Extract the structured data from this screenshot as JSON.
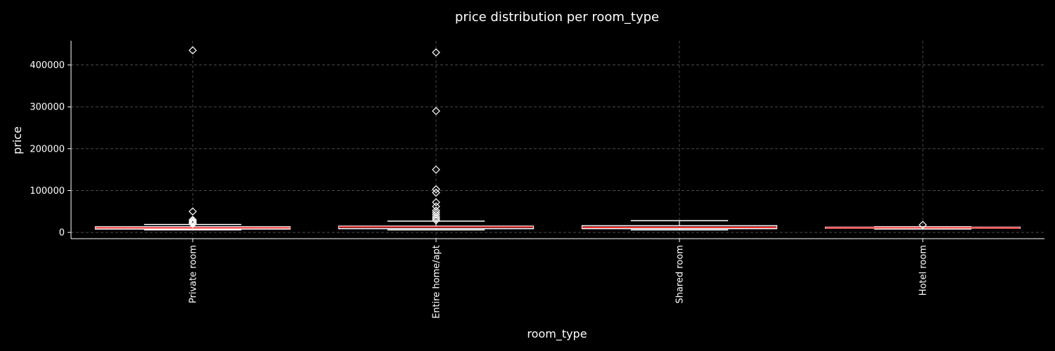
{
  "chart_data": {
    "type": "box",
    "title": "price distribution per room_type",
    "xlabel": "room_type",
    "ylabel": "price",
    "ylim": [
      -15000,
      458000
    ],
    "yticks": [
      0,
      100000,
      200000,
      300000,
      400000
    ],
    "ytick_labels": [
      "0",
      "100000",
      "200000",
      "300000",
      "400000"
    ],
    "grid": true,
    "categories": [
      "Private room",
      "Entire home/apt",
      "Shared room",
      "Hotel room"
    ],
    "boxes": [
      {
        "category": "Private room",
        "whisker_low": 6000,
        "q1": 8000,
        "median": 11000,
        "q3": 13500,
        "whisker_high": 19000,
        "outliers": [
          20000,
          22000,
          24000,
          27000,
          30000,
          50000,
          435000
        ]
      },
      {
        "category": "Entire home/apt",
        "whisker_low": 6000,
        "q1": 9000,
        "median": 13000,
        "q3": 15000,
        "whisker_high": 27000,
        "outliers": [
          29000,
          33000,
          37000,
          42000,
          47000,
          52000,
          62000,
          72000,
          95000,
          103000,
          150000,
          290000,
          430000
        ]
      },
      {
        "category": "Shared room",
        "whisker_low": 6000,
        "q1": 9000,
        "median": 12000,
        "q3": 16000,
        "whisker_high": 28000,
        "outliers": []
      },
      {
        "category": "Hotel room",
        "whisker_low": 8000,
        "q1": 10000,
        "median": 11000,
        "q3": 12500,
        "whisker_high": 13500,
        "outliers": [
          18000
        ]
      }
    ],
    "colors": {
      "background": "#000000",
      "axis": "#ffffff",
      "grid": "#555555",
      "box_edge": "#ffffff",
      "box_fill": "#000000",
      "median": "#ff3333",
      "outlier": "#ffffff"
    }
  }
}
